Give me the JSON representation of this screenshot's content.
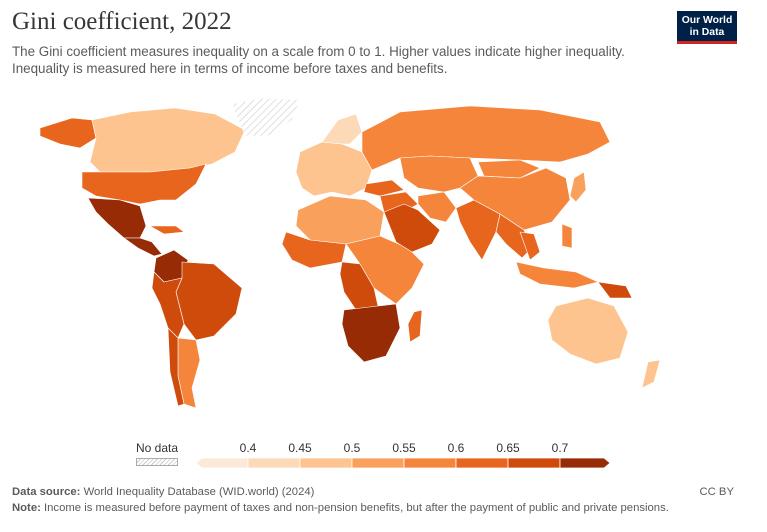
{
  "header": {
    "title": "Gini coefficient, 2022",
    "subtitle_line1": "The Gini coefficient measures inequality on a scale from 0 to 1. Higher values indicate higher inequality.",
    "subtitle_line2": "Inequality is measured here in terms of income before taxes and benefits."
  },
  "logo": {
    "line1": "Our World",
    "line2": "in Data",
    "bg": "#002147",
    "accent": "#ce261e"
  },
  "legend": {
    "nodata_label": "No data",
    "ticks": [
      "0.4",
      "0.45",
      "0.5",
      "0.55",
      "0.6",
      "0.65",
      "0.7"
    ],
    "colors": [
      "#fde9d8",
      "#fddab7",
      "#fdc48f",
      "#f9a05c",
      "#f5853b",
      "#e8651e",
      "#cf4b0c",
      "#972b06"
    ]
  },
  "map": {
    "bins": {
      "north_america": 5,
      "canada": 2,
      "usa": 5,
      "alaska": 5,
      "greenland": "nodata",
      "mexico": 7,
      "central_america": 7,
      "caribbean": 5,
      "south_america": 6,
      "brazil": 6,
      "colombia": 7,
      "argentina": 4,
      "chile": 6,
      "europe": 2,
      "scandinavia": 1,
      "russia": 4,
      "turkey": 5,
      "africa": 4,
      "sahel": 3,
      "west_africa": 5,
      "central_africa": 6,
      "southern_africa": 7,
      "madagascar": 5,
      "middle_east": 5,
      "arabia": 6,
      "iran": 4,
      "central_asia": 4,
      "india": 5,
      "china": 4,
      "mongolia": 4,
      "southeast_asia": 5,
      "thailand": 5,
      "indonesia": 4,
      "philippines": 4,
      "png": 6,
      "australia": 2,
      "new_zealand": 2,
      "japan": 3
    }
  },
  "footer": {
    "source_label": "Data source:",
    "source_text": "World Inequality Database (WID.world) (2024)",
    "note_label": "Note:",
    "note_text": "Income is measured before payment of taxes and non-pension benefits, but after the payment of public and private pensions.",
    "license": "CC BY"
  }
}
